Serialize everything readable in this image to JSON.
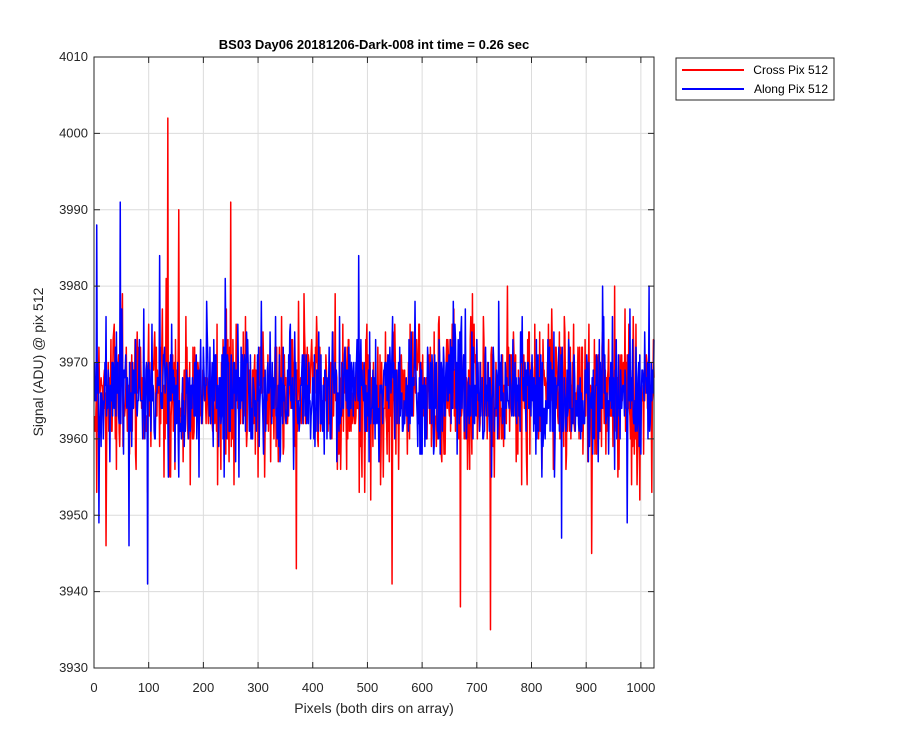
{
  "chart_data": {
    "type": "line",
    "title": "BS03 Day06 20181206-Dark-008 int time = 0.26 sec",
    "xlabel": "Pixels (both dirs on array)",
    "ylabel": "Signal (ADU) @ pix 512",
    "xlim": [
      0,
      1024
    ],
    "ylim": [
      3930,
      4010
    ],
    "xticks": [
      0,
      100,
      200,
      300,
      400,
      500,
      600,
      700,
      800,
      900,
      1000
    ],
    "yticks": [
      3930,
      3940,
      3950,
      3960,
      3970,
      3980,
      3990,
      4000,
      4010
    ],
    "grid": true,
    "legend_position": "outside top-right",
    "series": [
      {
        "name": "Cross Pix 512",
        "color": "#ff0000",
        "x_start": 1,
        "x_step": 1,
        "count": 1024,
        "mean": 3966,
        "spread": 4.8,
        "notable_points": [
          [
            5,
            3953
          ],
          [
            22,
            3946
          ],
          [
            135,
            4002
          ],
          [
            155,
            3990
          ],
          [
            250,
            3991
          ],
          [
            370,
            3943
          ],
          [
            545,
            3941
          ],
          [
            670,
            3938
          ],
          [
            725,
            3935
          ],
          [
            910,
            3945
          ],
          [
            1020,
            3953
          ]
        ]
      },
      {
        "name": "Along Pix 512",
        "color": "#0000ff",
        "x_start": 1,
        "x_step": 1,
        "count": 1024,
        "mean": 3966,
        "spread": 4.3,
        "notable_points": [
          [
            5,
            3988
          ],
          [
            9,
            3949
          ],
          [
            48,
            3991
          ],
          [
            64,
            3946
          ],
          [
            98,
            3941
          ],
          [
            120,
            3984
          ],
          [
            265,
            3955
          ],
          [
            600,
            3958
          ],
          [
            855,
            3947
          ],
          [
            930,
            3980
          ],
          [
            975,
            3949
          ],
          [
            1015,
            3980
          ]
        ]
      }
    ]
  }
}
